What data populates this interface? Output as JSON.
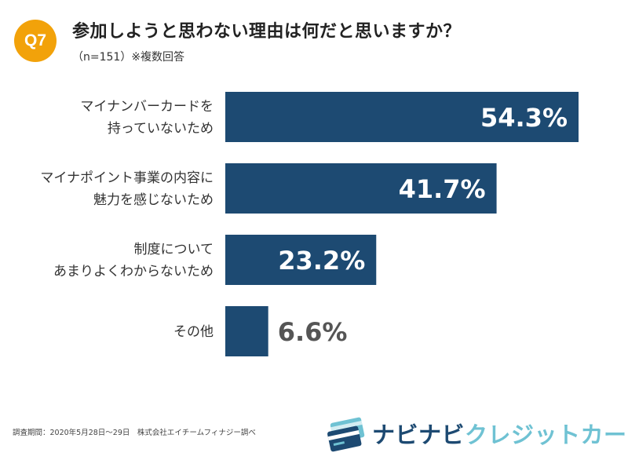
{
  "header": {
    "badge": "Q7",
    "title": "参加しようと思わない理由は何だと思いますか？",
    "subtitle": "（n=151）※複数回答"
  },
  "colors": {
    "bar": "#1d4a72",
    "badge": "#f2a20a",
    "label_inside": "#ffffff",
    "label_outside": "#555555"
  },
  "chart_data": {
    "type": "bar",
    "orientation": "horizontal",
    "categories": [
      [
        "マイナンバーカードを",
        "持っていないため"
      ],
      [
        "マイナポイント事業の内容に",
        "魅力を感じないため"
      ],
      [
        "制度について",
        "あまりよくわからないため"
      ],
      [
        "その他"
      ]
    ],
    "values": [
      54.3,
      41.7,
      23.2,
      6.6
    ],
    "value_labels": [
      "54.3%",
      "41.7%",
      "23.2%",
      "6.6%"
    ],
    "unit": "%",
    "xlim": [
      0,
      60
    ],
    "grid": false,
    "legend": "none"
  },
  "footer": {
    "note": "調査期間：2020年5月28日～29日　株式会社エイチームフィナジー調べ"
  },
  "logo": {
    "text_part1": "ナビナビ",
    "text_part2": "クレジットカード",
    "icon": "credit-card-icon"
  }
}
